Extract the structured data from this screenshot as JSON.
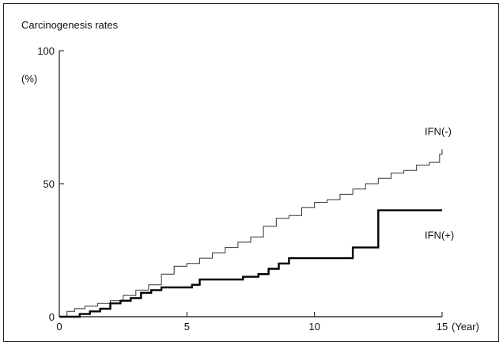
{
  "chart_data": {
    "type": "line",
    "title": "Carcinogenesis rates",
    "ylabel": "(%)",
    "xlabel": "(Year)",
    "xlim": [
      0,
      15
    ],
    "ylim": [
      0,
      100
    ],
    "x_ticks": [
      0,
      5,
      10,
      15
    ],
    "y_ticks": [
      0,
      50,
      100
    ],
    "grid": false,
    "step": true,
    "series": [
      {
        "name": "IFN(-)",
        "color": "#333333",
        "style": "thin",
        "x": [
          0,
          0.3,
          0.6,
          1.0,
          1.5,
          2.0,
          2.5,
          3.0,
          3.5,
          4.0,
          4.5,
          5.0,
          5.5,
          6.0,
          6.5,
          7.0,
          7.5,
          8.0,
          8.5,
          9.0,
          9.5,
          10.0,
          10.5,
          11.0,
          11.5,
          12.0,
          12.5,
          13.0,
          13.5,
          14.0,
          14.5,
          14.9,
          15.0
        ],
        "y": [
          0,
          2,
          3,
          4,
          5,
          6,
          8,
          10,
          12,
          16,
          19,
          20,
          22,
          24,
          26,
          28,
          30,
          34,
          37,
          38,
          41,
          43,
          44,
          46,
          48,
          50,
          52,
          54,
          55,
          57,
          58,
          61,
          63
        ]
      },
      {
        "name": "IFN(+)",
        "color": "#000000",
        "style": "thick",
        "x": [
          0,
          0.8,
          1.2,
          1.6,
          2.0,
          2.4,
          2.8,
          3.2,
          3.6,
          4.0,
          5.2,
          5.5,
          7.2,
          7.8,
          8.2,
          8.6,
          9.0,
          11.5,
          12.5,
          15.0
        ],
        "y": [
          0,
          1,
          2,
          3,
          5,
          6,
          7,
          9,
          10,
          11,
          12,
          14,
          15,
          16,
          18,
          20,
          22,
          26,
          40,
          40
        ]
      }
    ]
  }
}
